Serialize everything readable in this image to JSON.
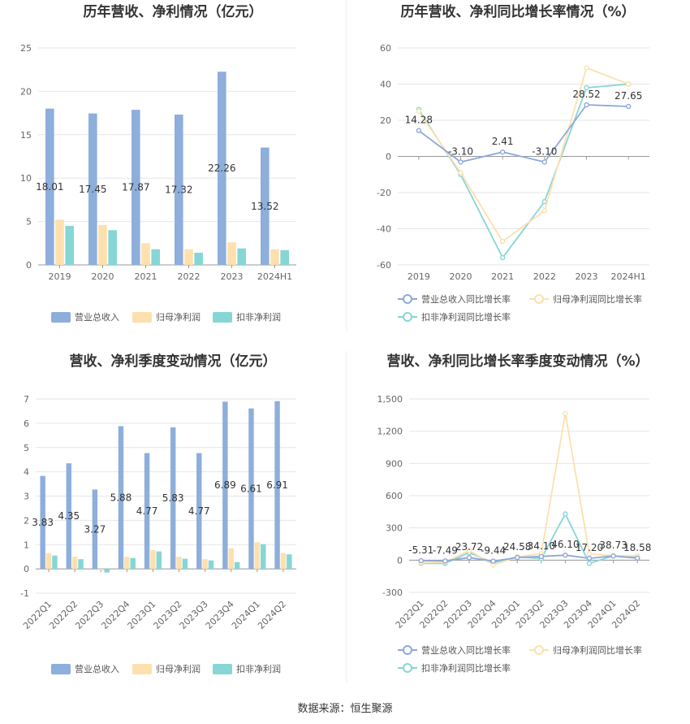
{
  "source": "数据来源：恒生聚源",
  "colors": {
    "revenue": "#8eaedb",
    "parent_profit": "#fde0ad",
    "deducted_profit": "#86d6d6",
    "grid": "#e6e6e6",
    "axis": "#999999"
  },
  "chart_data": [
    {
      "id": "annual-bar",
      "type": "bar",
      "title": "历年营收、净利情况（亿元）",
      "categories": [
        "2019",
        "2020",
        "2021",
        "2022",
        "2023",
        "2024H1"
      ],
      "ylim": [
        0,
        25
      ],
      "yticks": [
        0,
        5,
        10,
        15,
        20,
        25
      ],
      "series": [
        {
          "name": "营业总收入",
          "values": [
            18.01,
            17.45,
            17.87,
            17.32,
            22.26,
            13.52
          ],
          "labels": [
            "18.01",
            "17.45",
            "17.87",
            "17.32",
            "22.26",
            "13.52"
          ]
        },
        {
          "name": "归母净利润",
          "values": [
            5.2,
            4.6,
            2.5,
            1.8,
            2.6,
            1.8
          ]
        },
        {
          "name": "扣非净利润",
          "values": [
            4.5,
            4.0,
            1.8,
            1.4,
            1.9,
            1.7
          ]
        }
      ],
      "grid": true,
      "legend": "bottom"
    },
    {
      "id": "annual-line",
      "type": "line",
      "title": "历年营收、净利同比增长率情况（%）",
      "categories": [
        "2019",
        "2020",
        "2021",
        "2022",
        "2023",
        "2024H1"
      ],
      "ylim": [
        -60,
        60
      ],
      "yticks": [
        -60,
        -40,
        -20,
        0,
        20,
        40,
        60
      ],
      "series": [
        {
          "name": "营业总收入同比增长率",
          "values": [
            14.28,
            -3.1,
            2.41,
            -3.1,
            28.52,
            27.65
          ],
          "labels": [
            "14.28",
            "-3.10",
            "2.41",
            "-3.10",
            "28.52",
            "27.65"
          ]
        },
        {
          "name": "归母净利润同比增长率",
          "values": [
            25,
            -9,
            -47,
            -30,
            49,
            40
          ]
        },
        {
          "name": "扣非净利润同比增长率",
          "values": [
            26,
            -10,
            -56,
            -25,
            38,
            40
          ]
        }
      ],
      "grid": true,
      "legend": "bottom"
    },
    {
      "id": "quarter-bar",
      "type": "bar",
      "title": "营收、净利季度变动情况（亿元）",
      "categories": [
        "2022Q1",
        "2022Q2",
        "2022Q3",
        "2022Q4",
        "2023Q1",
        "2023Q2",
        "2023Q3",
        "2023Q4",
        "2024Q1",
        "2024Q2"
      ],
      "ylim": [
        -1,
        7
      ],
      "yticks": [
        -1,
        0,
        1,
        2,
        3,
        4,
        5,
        6,
        7
      ],
      "series": [
        {
          "name": "营业总收入",
          "values": [
            3.83,
            4.35,
            3.27,
            5.88,
            4.77,
            5.83,
            4.77,
            6.89,
            6.61,
            6.91
          ],
          "labels": [
            "3.83",
            "4.35",
            "3.27",
            "5.88",
            "4.77",
            "5.83",
            "4.77",
            "6.89",
            "6.61",
            "6.91"
          ]
        },
        {
          "name": "归母净利润",
          "values": [
            0.65,
            0.5,
            -0.05,
            0.5,
            0.78,
            0.5,
            0.4,
            0.85,
            1.1,
            0.65
          ]
        },
        {
          "name": "扣非净利润",
          "values": [
            0.55,
            0.4,
            -0.15,
            0.45,
            0.72,
            0.42,
            0.35,
            0.28,
            1.02,
            0.6
          ]
        }
      ],
      "grid": true,
      "legend": "bottom"
    },
    {
      "id": "quarter-line",
      "type": "line",
      "title": "营收、净利同比增长率季度变动情况（%）",
      "categories": [
        "2022Q1",
        "2022Q2",
        "2022Q3",
        "2022Q4",
        "2023Q1",
        "2023Q2",
        "2023Q3",
        "2023Q4",
        "2024Q1",
        "2024Q2"
      ],
      "ylim": [
        -300,
        1500
      ],
      "yticks": [
        -300,
        0,
        300,
        600,
        900,
        1200,
        1500
      ],
      "ytick_labels": [
        "-300",
        "0",
        "300",
        "600",
        "900",
        "1,200",
        "1,500"
      ],
      "series": [
        {
          "name": "营业总收入同比增长率",
          "values": [
            -5.31,
            -7.49,
            23.72,
            -9.44,
            24.58,
            34.1,
            46.1,
            17.2,
            38.73,
            18.58
          ],
          "labels": [
            "-5.31",
            "-7.49",
            "23.72",
            "-9.44",
            "24.58",
            "34.10",
            "46.10",
            "17.20",
            "38.73",
            "18.58"
          ]
        },
        {
          "name": "归母净利润同比增长率",
          "values": [
            -25,
            -20,
            90,
            -45,
            30,
            60,
            1365,
            60,
            40,
            40
          ]
        },
        {
          "name": "扣非净利润同比增长率",
          "values": [
            -30,
            -30,
            70,
            -25,
            30,
            15,
            430,
            -30,
            40,
            25
          ]
        }
      ],
      "grid": true,
      "legend": "bottom"
    }
  ]
}
